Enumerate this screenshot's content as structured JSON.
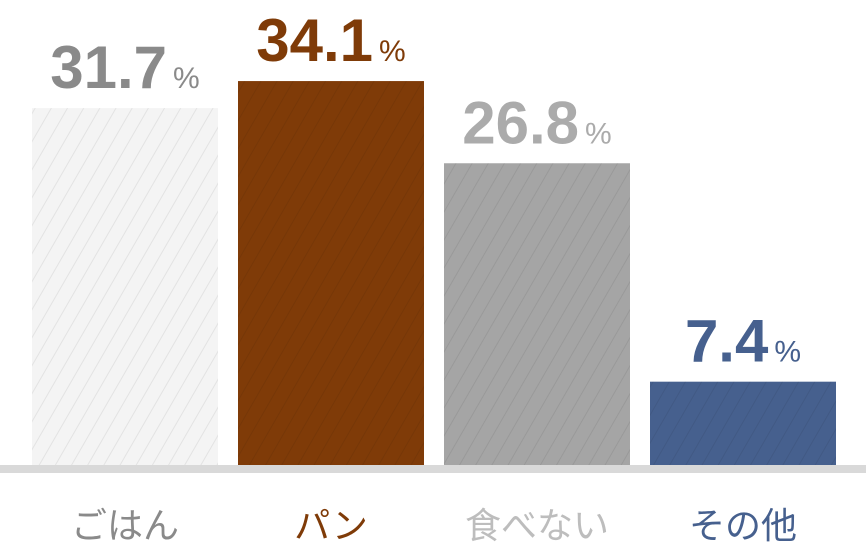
{
  "chart_data": {
    "type": "bar",
    "categories": [
      "ごはん",
      "パン",
      "食べない",
      "その他"
    ],
    "values": [
      31.7,
      34.1,
      26.8,
      7.4
    ],
    "unit": "%",
    "colors": [
      "#f4f4f4",
      "#7f3b08",
      "#a5a5a5",
      "#46608e"
    ],
    "label_colors": [
      "#8a8a8a",
      "#7f3b08",
      "#ababab",
      "#46608e"
    ],
    "category_colors": [
      "#8a8a8a",
      "#7f3b08",
      "#bdbdbd",
      "#46608e"
    ],
    "ylim": [
      0,
      41.3
    ]
  }
}
